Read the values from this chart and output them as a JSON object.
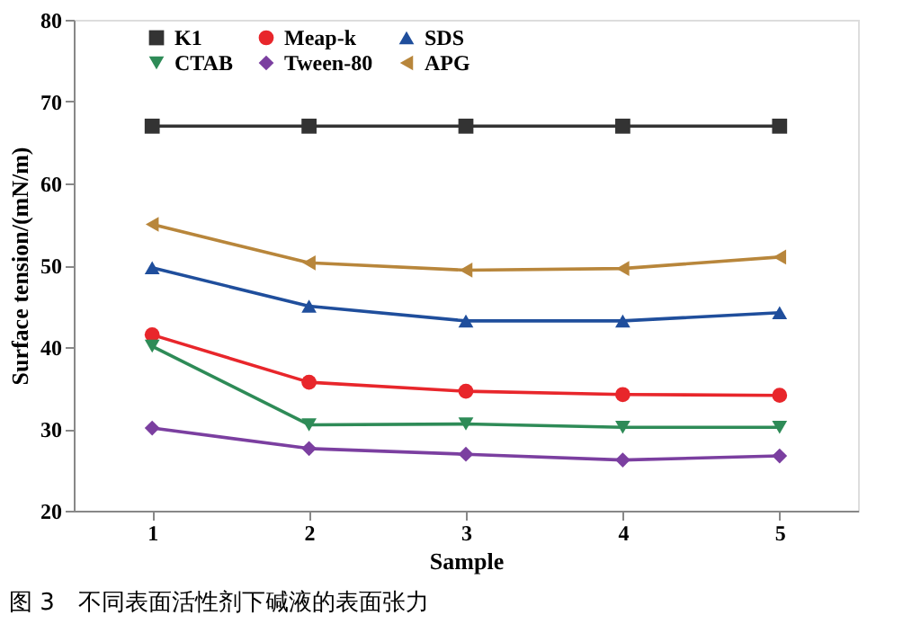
{
  "chart_data": {
    "type": "line",
    "xlabel": "Sample",
    "ylabel": "Surface tension/(mN/m)",
    "x": [
      1,
      2,
      3,
      4,
      5
    ],
    "xlim": [
      0.5,
      5.5
    ],
    "xticks": [
      1,
      2,
      3,
      4,
      5
    ],
    "ylim": [
      20,
      80
    ],
    "yticks": [
      20,
      30,
      40,
      50,
      60,
      70,
      80
    ],
    "grid": false,
    "legend": "top",
    "line_style": "solid",
    "series": [
      {
        "name": "K1",
        "color": "#333333",
        "marker": "square",
        "values": [
          67,
          67,
          67,
          67,
          67
        ]
      },
      {
        "name": "Meap-k",
        "color": "#e8262b",
        "marker": "circle",
        "values": [
          41.5,
          35.7,
          34.6,
          34.2,
          34.1
        ]
      },
      {
        "name": "SDS",
        "color": "#1f4e9c",
        "marker": "triangle",
        "values": [
          49.7,
          45,
          43.2,
          43.2,
          44.2
        ]
      },
      {
        "name": "CTAB",
        "color": "#2e8b57",
        "marker": "triangle-down",
        "values": [
          40.1,
          30.5,
          30.6,
          30.2,
          30.2
        ]
      },
      {
        "name": "Tween-80",
        "color": "#7b3fa0",
        "marker": "diamond",
        "values": [
          30.1,
          27.6,
          26.9,
          26.2,
          26.7
        ]
      },
      {
        "name": "APG",
        "color": "#b8863b",
        "marker": "triangle-left",
        "values": [
          55,
          50.3,
          49.4,
          49.6,
          51
        ]
      }
    ],
    "annotations": [
      "图 3　不同表面活性剂下碱液的表面张力"
    ]
  }
}
